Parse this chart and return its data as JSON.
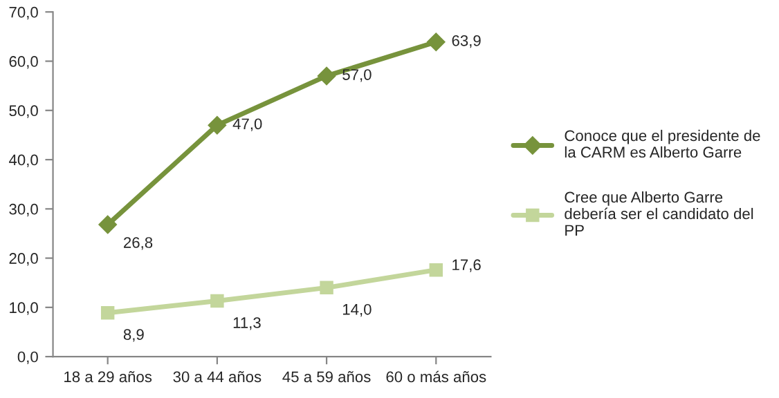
{
  "chart_data": {
    "type": "line",
    "categories": [
      "18 a 29 años",
      "30 a 44 años",
      "45 a 59 años",
      "60 o más años"
    ],
    "series": [
      {
        "name": "Conoce que el presidente de\nla CARM es Alberto Garre",
        "color": "#77933c",
        "marker": "diamond",
        "values": [
          26.8,
          47.0,
          57.0,
          63.9
        ],
        "value_labels": [
          "26,8",
          "47,0",
          "57,0",
          "63,9"
        ]
      },
      {
        "name": "Cree que Alberto Garre\ndebería ser el candidato del\nPP",
        "color": "#c3d69b",
        "marker": "square",
        "values": [
          8.9,
          11.3,
          14.0,
          17.6
        ],
        "value_labels": [
          "8,9",
          "11,3",
          "14,0",
          "17,6"
        ]
      }
    ],
    "ylim": [
      0,
      70
    ],
    "yticks": [
      {
        "value": 0,
        "label": "0,0"
      },
      {
        "value": 10,
        "label": "10,0"
      },
      {
        "value": 20,
        "label": "20,0"
      },
      {
        "value": 30,
        "label": "30,0"
      },
      {
        "value": 40,
        "label": "40,0"
      },
      {
        "value": 50,
        "label": "50,0"
      },
      {
        "value": 60,
        "label": "60,0"
      },
      {
        "value": 70,
        "label": "70,0"
      }
    ],
    "grid": false,
    "legend": "right",
    "line_style": "solid"
  }
}
